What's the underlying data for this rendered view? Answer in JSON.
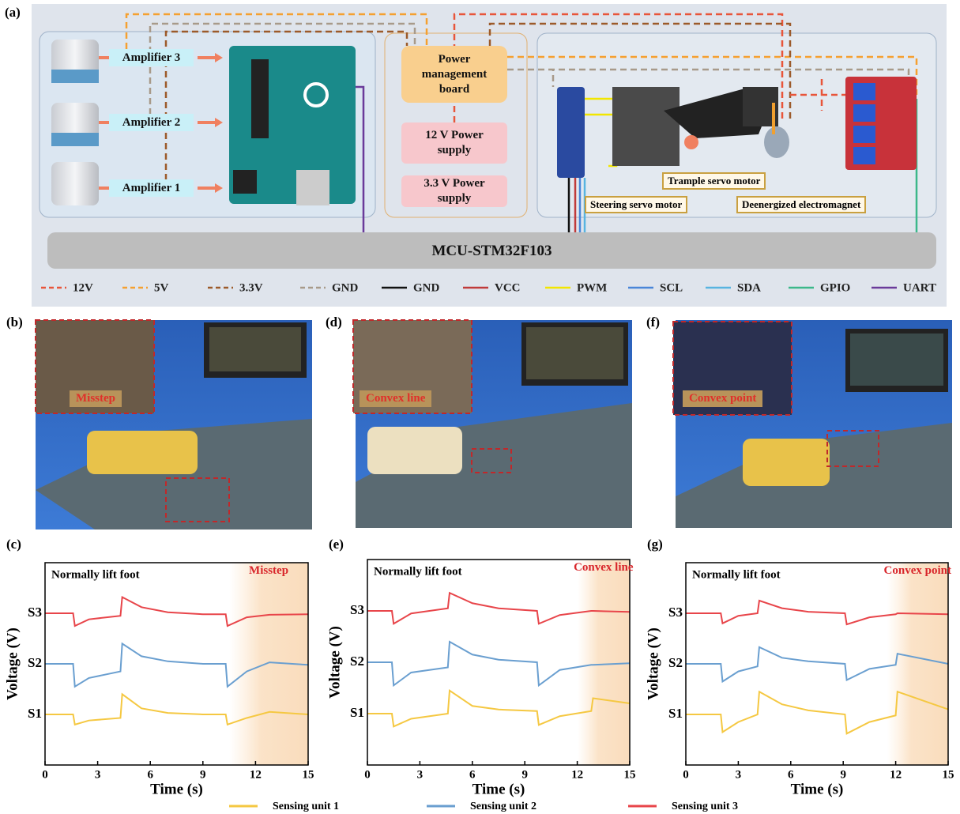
{
  "panel_a": {
    "label": "(a)",
    "amplifiers": [
      "Amplifier 3",
      "Amplifier 2",
      "Amplifier 1"
    ],
    "power_management": "Power management board",
    "supplies": [
      "12 V Power supply",
      "3.3 V Power supply"
    ],
    "components": [
      "Trample servo motor",
      "Steering servo motor",
      "Deenergized electromagnet"
    ],
    "mcu": "MCU-STM32F103",
    "wire_legend": [
      {
        "name": "12V",
        "color": "#e8553a",
        "dashed": true
      },
      {
        "name": "5V",
        "color": "#f5a030",
        "dashed": true
      },
      {
        "name": "3.3V",
        "color": "#9c5a2a",
        "dashed": true
      },
      {
        "name": "GND",
        "color": "#a89a8a",
        "dashed": true
      },
      {
        "name": "GND",
        "color": "#111111",
        "dashed": false
      },
      {
        "name": "VCC",
        "color": "#c03a3a",
        "dashed": false
      },
      {
        "name": "PWM",
        "color": "#f2e600",
        "dashed": false
      },
      {
        "name": "SCL",
        "color": "#4a86d8",
        "dashed": false
      },
      {
        "name": "SDA",
        "color": "#58b4e0",
        "dashed": false
      },
      {
        "name": "GPIO",
        "color": "#3cb88a",
        "dashed": false
      },
      {
        "name": "UART",
        "color": "#6a3a9a",
        "dashed": false
      }
    ]
  },
  "photos": [
    {
      "label": "(b)",
      "inset_label": "Misstep"
    },
    {
      "label": "(d)",
      "inset_label": "Convex line"
    },
    {
      "label": "(f)",
      "inset_label": "Convex point"
    }
  ],
  "chart_data": [
    {
      "type": "line",
      "label": "(c)",
      "xlabel": "Time (s)",
      "ylabel": "Voltage (V)",
      "xlim": [
        0,
        15
      ],
      "xticks": [
        0,
        3,
        6,
        9,
        12,
        15
      ],
      "ylim": [
        0,
        4
      ],
      "yticks": [
        {
          "value": 1,
          "label": "S1"
        },
        {
          "value": 2,
          "label": "S2"
        },
        {
          "value": 3,
          "label": "S3"
        }
      ],
      "annotation": "Normally lift foot",
      "highlight_label": "Misstep",
      "highlight_xlim": [
        10.5,
        15
      ],
      "x": [
        0,
        1.6,
        1.7,
        2.5,
        4.3,
        4.4,
        5.5,
        7,
        9,
        10.3,
        10.4,
        11.5,
        12.8,
        15
      ],
      "series": [
        {
          "values": [
            1.0,
            1.0,
            0.8,
            0.88,
            0.93,
            1.4,
            1.12,
            1.03,
            1.0,
            1.0,
            0.8,
            0.93,
            1.05,
            1.0
          ]
        },
        {
          "values": [
            2.0,
            2.0,
            1.55,
            1.72,
            1.85,
            2.4,
            2.15,
            2.05,
            2.0,
            2.0,
            1.55,
            1.85,
            2.03,
            1.98
          ]
        },
        {
          "values": [
            3.0,
            3.0,
            2.75,
            2.88,
            2.95,
            3.32,
            3.12,
            3.02,
            2.98,
            2.98,
            2.75,
            2.92,
            2.97,
            2.98
          ]
        }
      ]
    },
    {
      "type": "line",
      "label": "(e)",
      "xlabel": "Time (s)",
      "ylabel": "Voltage (V)",
      "xlim": [
        0,
        15
      ],
      "xticks": [
        0,
        3,
        6,
        9,
        12,
        15
      ],
      "ylim": [
        0,
        4
      ],
      "yticks": [
        {
          "value": 1,
          "label": "S1"
        },
        {
          "value": 2,
          "label": "S2"
        },
        {
          "value": 3,
          "label": "S3"
        }
      ],
      "annotation": "Normally lift foot",
      "highlight_label": "Convex line",
      "highlight_xlim": [
        12,
        15
      ],
      "x": [
        0,
        1.4,
        1.5,
        2.5,
        4.6,
        4.7,
        6,
        7.5,
        9.7,
        9.8,
        11,
        12.8,
        12.9,
        15
      ],
      "series": [
        {
          "values": [
            1.0,
            1.0,
            0.75,
            0.9,
            1.0,
            1.45,
            1.15,
            1.08,
            1.05,
            0.78,
            0.95,
            1.05,
            1.3,
            1.2
          ]
        },
        {
          "values": [
            2.0,
            2.0,
            1.55,
            1.8,
            1.9,
            2.4,
            2.15,
            2.05,
            2.0,
            1.55,
            1.85,
            1.95,
            1.95,
            1.98
          ]
        },
        {
          "values": [
            3.0,
            3.0,
            2.75,
            2.95,
            3.05,
            3.35,
            3.15,
            3.05,
            3.0,
            2.75,
            2.92,
            3.0,
            3.0,
            2.98
          ]
        }
      ]
    },
    {
      "type": "line",
      "label": "(g)",
      "xlabel": "Time (s)",
      "ylabel": "Voltage (V)",
      "xlim": [
        0,
        15
      ],
      "xticks": [
        0,
        3,
        6,
        9,
        12,
        15
      ],
      "ylim": [
        0,
        4
      ],
      "yticks": [
        {
          "value": 1,
          "label": "S1"
        },
        {
          "value": 2,
          "label": "S2"
        },
        {
          "value": 3,
          "label": "S3"
        }
      ],
      "annotation": "Normally lift foot",
      "highlight_label": "Convex point",
      "highlight_xlim": [
        11.5,
        15
      ],
      "x": [
        0,
        2.0,
        2.1,
        3.0,
        4.1,
        4.2,
        5.5,
        7,
        9.1,
        9.2,
        10.5,
        12.0,
        12.1,
        15
      ],
      "series": [
        {
          "values": [
            1.0,
            1.0,
            0.65,
            0.85,
            1.0,
            1.45,
            1.2,
            1.08,
            1.0,
            0.62,
            0.85,
            0.98,
            1.45,
            1.1
          ]
        },
        {
          "values": [
            2.0,
            2.0,
            1.65,
            1.85,
            1.95,
            2.33,
            2.12,
            2.05,
            2.0,
            1.68,
            1.9,
            1.98,
            2.2,
            2.0
          ]
        },
        {
          "values": [
            3.0,
            3.0,
            2.8,
            2.95,
            3.0,
            3.25,
            3.1,
            3.03,
            3.0,
            2.78,
            2.92,
            2.98,
            3.0,
            2.98
          ]
        }
      ]
    }
  ],
  "legend": [
    {
      "name": "Sensing unit 1",
      "color": "#f5c842"
    },
    {
      "name": "Sensing unit 2",
      "color": "#6a9fd0"
    },
    {
      "name": "Sensing unit 3",
      "color": "#e8454a"
    }
  ]
}
